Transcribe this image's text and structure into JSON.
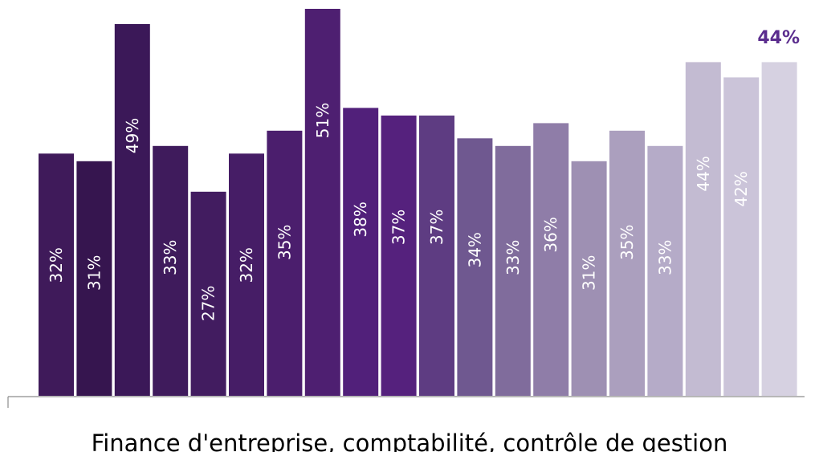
{
  "chart_data": {
    "type": "bar",
    "title": "",
    "xlabel": "Finance d'entreprise, comptabilité, contrôle de gestion",
    "ylabel": "",
    "ylim": [
      0,
      51
    ],
    "grid": false,
    "legend": "none",
    "highlight_label": "44%",
    "values": [
      32,
      31,
      49,
      33,
      27,
      32,
      35,
      51,
      38,
      37,
      37,
      34,
      33,
      36,
      31,
      35,
      33,
      44,
      42,
      44
    ],
    "labels": [
      "32%",
      "31%",
      "49%",
      "33%",
      "27%",
      "32%",
      "35%",
      "51%",
      "38%",
      "37%",
      "37%",
      "34%",
      "33%",
      "36%",
      "31%",
      "35%",
      "33%",
      "44%",
      "42%",
      ""
    ],
    "colors": [
      "#3f1a5a",
      "#36154f",
      "#3b1858",
      "#3f1b5c",
      "#421c60",
      "#461d66",
      "#4b1e6d",
      "#4e1f71",
      "#51207a",
      "#55217d",
      "#5e3c82",
      "#6f5890",
      "#806c9c",
      "#8f7da8",
      "#9e90b3",
      "#ab9fbe",
      "#b5abc8",
      "#c3bbd2",
      "#cbc4d9",
      "#d6d1e1"
    ]
  }
}
